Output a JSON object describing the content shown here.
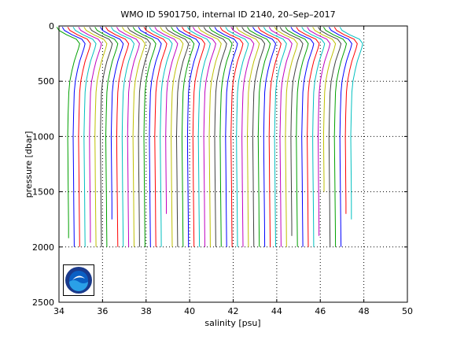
{
  "chart_data": {
    "type": "line",
    "title": "WMO ID 5901750, internal ID 2140, 20–Sep–2017",
    "xlabel": "salinity [psu]",
    "ylabel": "pressure [dbar]",
    "xlim": [
      34,
      50
    ],
    "ylim": [
      0,
      2500
    ],
    "y_reversed": true,
    "x_ticks": [
      "34",
      "36",
      "38",
      "40",
      "42",
      "44",
      "46",
      "48",
      "50"
    ],
    "y_ticks": [
      "0",
      "500",
      "1000",
      "1500",
      "2000",
      "2500"
    ],
    "grid": "dotted",
    "legend": "none",
    "pressure_levels": [
      10,
      40,
      80,
      120,
      160,
      200,
      260,
      320,
      400,
      500,
      600,
      800,
      1000,
      1200,
      1400,
      1600,
      1800,
      2000
    ],
    "profile_offset_psu": 0.25,
    "base_profile_salinity": [
      33.9,
      34.0,
      34.35,
      34.8,
      34.95,
      34.9,
      34.8,
      34.7,
      34.6,
      34.5,
      34.45,
      34.42,
      34.4,
      34.41,
      34.42,
      34.43,
      34.44,
      34.45
    ],
    "profile_count": 53,
    "profile_max_pressure": [
      1920,
      2000,
      2000,
      2000,
      1960,
      2000,
      2000,
      2000,
      1750,
      2000,
      2000,
      2000,
      2000,
      2000,
      2000,
      2000,
      2000,
      2000,
      1700,
      2000,
      2000,
      2000,
      2000,
      2000,
      2000,
      2000,
      2000,
      2000,
      2000,
      2000,
      2000,
      2000,
      2000,
      2000,
      2000,
      2000,
      2000,
      2000,
      2000,
      2000,
      2000,
      1900,
      2000,
      2000,
      2000,
      2000,
      1900,
      1500,
      2000,
      2000,
      2000,
      1700,
      1750
    ],
    "series_colors": [
      "#00a000",
      "#0000ff",
      "#ff0000",
      "#00bfbf",
      "#bf00bf",
      "#bfbf00",
      "#404040"
    ]
  },
  "logo": {
    "text": "NOAA",
    "colors": {
      "outer": "#1a3a8c",
      "sky": "#0a5fc4",
      "water": "#2aa0e8",
      "bird": "#ffffff",
      "frame": "#000000"
    }
  }
}
